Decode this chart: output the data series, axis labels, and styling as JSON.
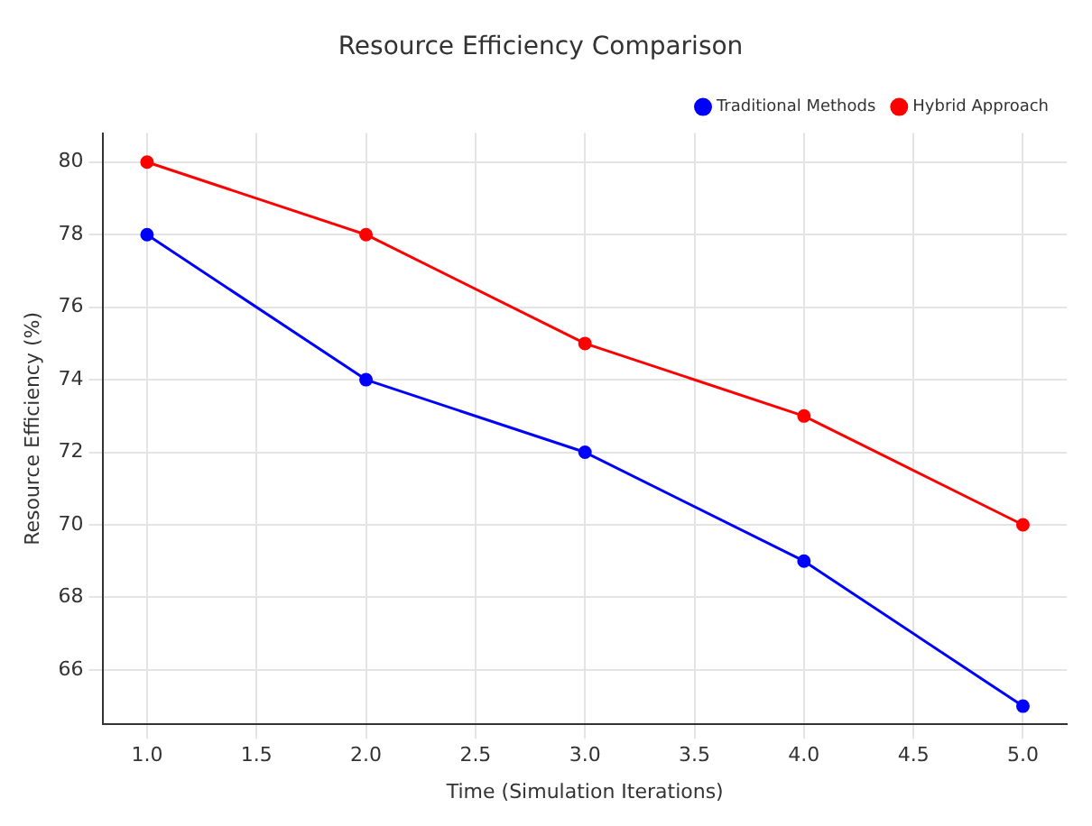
{
  "chart_data": {
    "type": "line",
    "title": "Resource Efficiency Comparison",
    "xlabel": "Time (Simulation Iterations)",
    "ylabel": "Resource Efficiency (%)",
    "x": [
      1,
      2,
      3,
      4,
      5
    ],
    "series": [
      {
        "name": "Traditional Methods",
        "color": "#0000ff",
        "values": [
          78,
          74,
          72,
          69,
          65
        ]
      },
      {
        "name": "Hybrid Approach",
        "color": "#ff0000",
        "values": [
          80,
          78,
          75,
          73,
          70
        ]
      }
    ],
    "xlim": [
      0.8,
      5.2
    ],
    "xticks": [
      {
        "value": 1,
        "label": "1.0"
      },
      {
        "value": 1.5,
        "label": "1.5"
      },
      {
        "value": 2,
        "label": "2.0"
      },
      {
        "value": 2.5,
        "label": "2.5"
      },
      {
        "value": 3,
        "label": "3.0"
      },
      {
        "value": 3.5,
        "label": "3.5"
      },
      {
        "value": 4,
        "label": "4.0"
      },
      {
        "value": 4.5,
        "label": "4.5"
      },
      {
        "value": 5,
        "label": "5.0"
      }
    ],
    "ylim": [
      64.5,
      80.8
    ],
    "yticks": [
      66,
      68,
      70,
      72,
      74,
      76,
      78,
      80
    ],
    "grid": true,
    "legend": "top right",
    "marker": "circle",
    "line_style": "solid"
  }
}
